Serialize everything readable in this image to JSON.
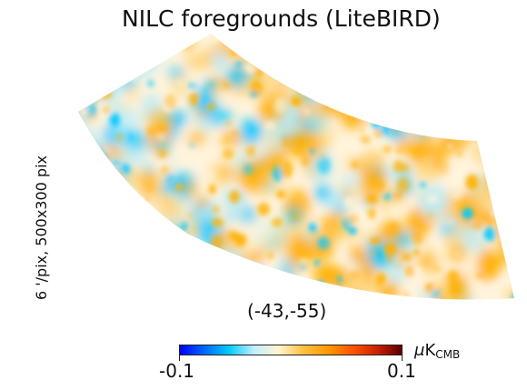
{
  "title": "NILC foregrounds (LiteBIRD)",
  "side_label": "6 '/pix,   500x300 pix",
  "coordinates": "(-43,-55)",
  "colorbar": {
    "min_label": "-0.1",
    "max_label": "0.1",
    "unit_prefix": "μ",
    "unit_main": "K",
    "unit_sub": "CMB",
    "colors": [
      "#0000ff",
      "#0066ff",
      "#00ccff",
      "#bfefff",
      "#fff6d0",
      "#ffc040",
      "#ff9900",
      "#ff5500",
      "#cc2200",
      "#5a0000"
    ]
  },
  "map_colors": {
    "blue": "#00c8ff",
    "light_blue": "#b8ecfa",
    "cream": "#fff4dc",
    "orange": "#ffb000",
    "light_orange": "#ffd680"
  }
}
